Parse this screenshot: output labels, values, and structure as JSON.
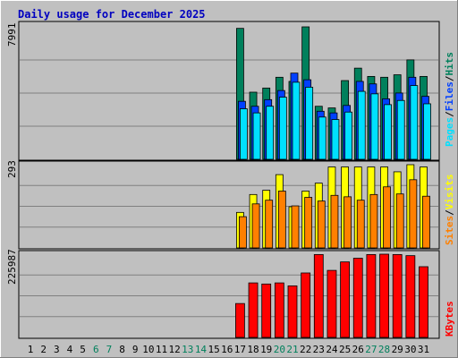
{
  "chart_data": [
    {
      "type": "bar",
      "title": "Daily usage for December 2025",
      "categories": [
        "1",
        "2",
        "3",
        "4",
        "5",
        "6",
        "7",
        "8",
        "9",
        "10",
        "11",
        "12",
        "13",
        "14",
        "15",
        "16",
        "17",
        "18",
        "19",
        "20",
        "21",
        "22",
        "23",
        "24",
        "25",
        "26",
        "27",
        "28",
        "29",
        "30",
        "31"
      ],
      "weekend_days": [
        "6",
        "7",
        "13",
        "14",
        "20",
        "21",
        "27",
        "28"
      ],
      "ymax_label": "7991",
      "ylim": [
        0,
        7991
      ],
      "grid": true,
      "legend": [
        "Pages",
        "Files",
        "Hits"
      ],
      "legend_separator": "/",
      "series": [
        {
          "name": "Hits",
          "values": [
            0,
            0,
            0,
            0,
            0,
            0,
            0,
            0,
            0,
            0,
            0,
            0,
            0,
            0,
            0,
            0,
            7900,
            4050,
            4300,
            4950,
            4700,
            8050,
            3200,
            3100,
            4750,
            5500,
            5000,
            4950,
            5100,
            6000,
            5000
          ]
        },
        {
          "name": "Files",
          "values": [
            0,
            0,
            0,
            0,
            0,
            0,
            0,
            0,
            0,
            0,
            0,
            0,
            0,
            0,
            0,
            0,
            3500,
            3200,
            3600,
            4150,
            5200,
            4800,
            2900,
            2800,
            3250,
            4700,
            4550,
            3650,
            4000,
            4950,
            3800
          ]
        },
        {
          "name": "Pages",
          "values": [
            0,
            0,
            0,
            0,
            0,
            0,
            0,
            0,
            0,
            0,
            0,
            0,
            0,
            0,
            0,
            0,
            3050,
            2800,
            3200,
            3750,
            4650,
            4350,
            2550,
            2400,
            2850,
            4100,
            3950,
            3300,
            3550,
            4450,
            3350
          ]
        }
      ],
      "colors": {
        "Hits": "#00805c",
        "Files": "#0040ff",
        "Pages": "#00e0ff"
      }
    },
    {
      "type": "bar",
      "ymax_label": "293",
      "ylim": [
        0,
        293
      ],
      "grid": true,
      "legend": [
        "Sites",
        "Visits"
      ],
      "legend_separator": "/",
      "series": [
        {
          "name": "Visits",
          "values": [
            0,
            0,
            0,
            0,
            0,
            0,
            0,
            0,
            0,
            0,
            0,
            0,
            0,
            0,
            0,
            0,
            125,
            188,
            203,
            258,
            145,
            200,
            228,
            285,
            285,
            285,
            285,
            285,
            268,
            300,
            285
          ]
        },
        {
          "name": "Sites",
          "values": [
            0,
            0,
            0,
            0,
            0,
            0,
            0,
            0,
            0,
            0,
            0,
            0,
            0,
            0,
            0,
            0,
            110,
            155,
            168,
            200,
            148,
            178,
            165,
            185,
            180,
            168,
            188,
            215,
            190,
            240,
            182
          ]
        }
      ],
      "colors": {
        "Visits": "#ffff00",
        "Sites": "#ff8000"
      }
    },
    {
      "type": "bar",
      "ymax_label": "225987",
      "ylim": [
        0,
        225987
      ],
      "grid": true,
      "legend": [
        "KBytes"
      ],
      "series": [
        {
          "name": "KBytes",
          "values": [
            0,
            0,
            0,
            0,
            0,
            0,
            0,
            0,
            0,
            0,
            0,
            0,
            0,
            0,
            0,
            0,
            92000,
            148000,
            145000,
            148000,
            140000,
            175000,
            225000,
            182000,
            205000,
            215000,
            225000,
            228000,
            225000,
            222000,
            192000
          ]
        }
      ],
      "colors": {
        "KBytes": "#ff0000"
      }
    }
  ]
}
